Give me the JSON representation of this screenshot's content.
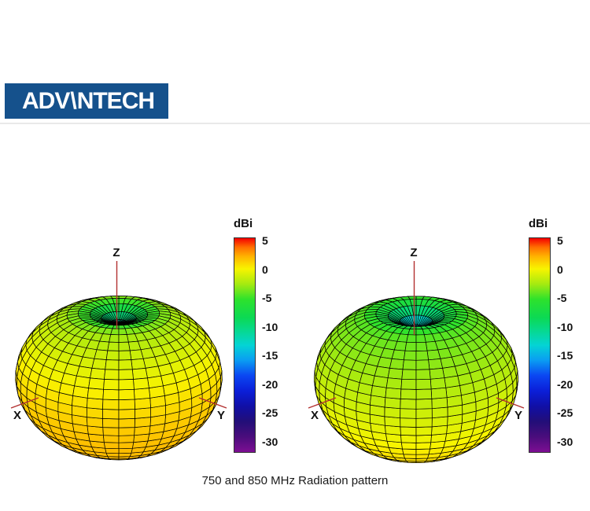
{
  "page": {
    "background": "#ffffff",
    "caption": "750 and 850 MHz Radiation pattern"
  },
  "header": {
    "logo": {
      "text_pre": "ADV",
      "text_mark": "\\",
      "text_post": "NTECH",
      "bg": "#15518c",
      "fg": "#ffffff"
    },
    "divider_color": "#e9e9e9"
  },
  "chart_data": [
    {
      "type": "surface3d",
      "name": "750 MHz radiation pattern",
      "frequency_mhz": 750,
      "axis_labels": {
        "x": "X",
        "y": "Y",
        "z": "Z"
      },
      "colorbar": {
        "label": "dBi",
        "min": -30,
        "max": 5,
        "ticks": [
          5,
          0,
          -5,
          -10,
          -15,
          -20,
          -25,
          -30
        ]
      },
      "gain_profile_dbi": {
        "horizon": 0.7,
        "bottom": 1.8,
        "top_outside_null": -3.3,
        "zenith_null": -11.3
      },
      "model": {
        "a": 0.7,
        "b": -2.55,
        "c": -1.45,
        "dip_depth": 8,
        "dip_sigma": 0.35
      },
      "mesh": {
        "theta_divisions": 26,
        "phi_divisions": 40
      }
    },
    {
      "type": "surface3d",
      "name": "850 MHz radiation pattern",
      "frequency_mhz": 850,
      "axis_labels": {
        "x": "X",
        "y": "Y",
        "z": "Z"
      },
      "colorbar": {
        "label": "dBi",
        "min": -30,
        "max": 5,
        "ticks": [
          5,
          0,
          -5,
          -10,
          -15,
          -20,
          -25,
          -30
        ]
      },
      "gain_profile_dbi": {
        "horizon": -1.5,
        "bottom": 1.3,
        "top_outside_null": -4.5,
        "zenith_null": -14.5
      },
      "model": {
        "a": -1.5,
        "b": -2.9,
        "c": -0.1,
        "dip_depth": 10,
        "dip_sigma": 0.35
      },
      "mesh": {
        "theta_divisions": 26,
        "phi_divisions": 40
      }
    }
  ],
  "colormap": {
    "stops": [
      {
        "v": -30,
        "c": "#7d0e93"
      },
      {
        "v": -27.5,
        "c": "#4a0d7c"
      },
      {
        "v": -25,
        "c": "#220e78"
      },
      {
        "v": -22.5,
        "c": "#100fa6"
      },
      {
        "v": -20,
        "c": "#0b1fd8"
      },
      {
        "v": -17.5,
        "c": "#0b46f2"
      },
      {
        "v": -15,
        "c": "#0a9df2"
      },
      {
        "v": -12.5,
        "c": "#04d4d4"
      },
      {
        "v": -10,
        "c": "#07d98c"
      },
      {
        "v": -8,
        "c": "#0cd953"
      },
      {
        "v": -5,
        "c": "#2ee22c"
      },
      {
        "v": -2.5,
        "c": "#a6ea10"
      },
      {
        "v": 0,
        "c": "#f8f400"
      },
      {
        "v": 2,
        "c": "#ffb400"
      },
      {
        "v": 3.5,
        "c": "#ff7000"
      },
      {
        "v": 5,
        "c": "#f40000"
      }
    ]
  },
  "style": {
    "axis_line_color": "#b23030",
    "mesh_line_color": "#000000"
  }
}
